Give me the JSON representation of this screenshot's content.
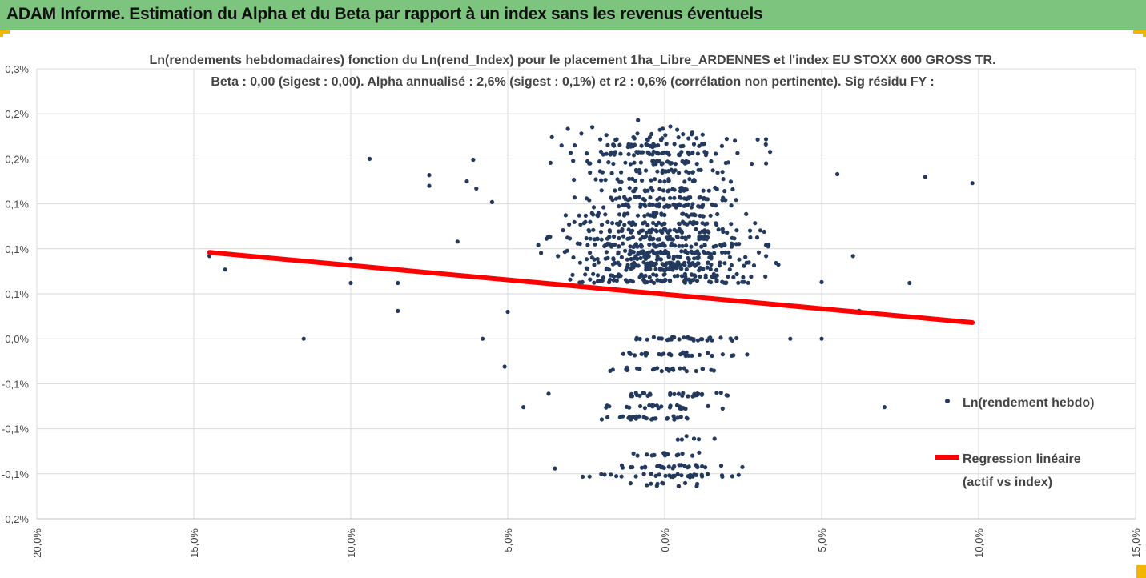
{
  "banner": {
    "title": "ADAM Informe. Estimation du Alpha et du Beta par rapport à un index sans les revenus éventuels"
  },
  "colors": {
    "banner_bg": "#7dc57f",
    "points": "#23395d",
    "regression": "#ff0000",
    "gridlines": "#d9d9d9"
  },
  "chart_data": {
    "type": "scatter",
    "title": "Ln(rendements hebdomadaires) fonction du Ln(rend_Index) pour le placement 1ha_Libre_ARDENNES et l'index EU STOXX 600 GROSS TR.",
    "subtitle": "Beta : 0,00 (sigest : 0,00). Alpha annualisé : 2,6% (sigest : 0,1%) et r2 : 0,6% (corrélation non pertinente). Sig résidu FY :",
    "xlim": [
      -0.2,
      0.15
    ],
    "ylim": [
      -0.002,
      0.003
    ],
    "x_ticks": [
      -0.2,
      -0.15,
      -0.1,
      -0.05,
      0.0,
      0.05,
      0.1,
      0.15
    ],
    "x_tick_labels": [
      "-20,0%",
      "-15,0%",
      "-10,0%",
      "-5,0%",
      "0,0%",
      "5,0%",
      "10,0%",
      "15,0%"
    ],
    "y_ticks": [
      0.003,
      0.0025,
      0.002,
      0.0015,
      0.001,
      0.0005,
      0.0,
      -0.0005,
      -0.001,
      -0.0015,
      -0.002
    ],
    "y_tick_labels": [
      "0,3%",
      "0,2%",
      "0,2%",
      "0,1%",
      "0,1%",
      "0,1%",
      "0,0%",
      "-0,1%",
      "-0,1%",
      "-0,1%",
      "-0,2%"
    ],
    "grid": true,
    "legend_position": "right",
    "series": [
      {
        "name": "Ln(rendement hebdo)",
        "kind": "scatter",
        "bands": [
          {
            "y": 0.00234,
            "x_from": -0.04,
            "x_to": 0.03,
            "count": 6
          },
          {
            "y": 0.00228,
            "x_from": -0.04,
            "x_to": 0.035,
            "count": 9
          },
          {
            "y": 0.00222,
            "x_from": -0.045,
            "x_to": 0.04,
            "count": 20
          },
          {
            "y": 0.00215,
            "x_from": -0.045,
            "x_to": 0.04,
            "count": 35
          },
          {
            "y": 0.00206,
            "x_from": -0.045,
            "x_to": 0.045,
            "count": 45
          },
          {
            "y": 0.00196,
            "x_from": -0.045,
            "x_to": 0.04,
            "count": 40
          },
          {
            "y": 0.00186,
            "x_from": -0.04,
            "x_to": 0.035,
            "count": 30
          },
          {
            "y": 0.00176,
            "x_from": -0.035,
            "x_to": 0.03,
            "count": 25
          },
          {
            "y": 0.00166,
            "x_from": -0.03,
            "x_to": 0.03,
            "count": 30
          },
          {
            "y": 0.00156,
            "x_from": -0.035,
            "x_to": 0.035,
            "count": 40
          },
          {
            "y": 0.00148,
            "x_from": -0.04,
            "x_to": 0.035,
            "count": 45
          },
          {
            "y": 0.00138,
            "x_from": -0.04,
            "x_to": 0.035,
            "count": 40
          },
          {
            "y": 0.00128,
            "x_from": -0.045,
            "x_to": 0.04,
            "count": 45
          },
          {
            "y": 0.0012,
            "x_from": -0.045,
            "x_to": 0.045,
            "count": 55
          },
          {
            "y": 0.00112,
            "x_from": -0.05,
            "x_to": 0.045,
            "count": 60
          },
          {
            "y": 0.00104,
            "x_from": -0.045,
            "x_to": 0.045,
            "count": 65
          },
          {
            "y": 0.00096,
            "x_from": -0.05,
            "x_to": 0.045,
            "count": 55
          },
          {
            "y": 0.0009,
            "x_from": -0.04,
            "x_to": 0.04,
            "count": 50
          },
          {
            "y": 0.00083,
            "x_from": -0.035,
            "x_to": 0.04,
            "count": 70
          },
          {
            "y": 0.00078,
            "x_from": -0.03,
            "x_to": 0.035,
            "count": 40
          },
          {
            "y": 0.0007,
            "x_from": -0.045,
            "x_to": 0.045,
            "count": 45
          },
          {
            "y": 0.00064,
            "x_from": -0.045,
            "x_to": 0.045,
            "count": 55
          },
          {
            "y": 0.0,
            "x_from": -0.02,
            "x_to": 0.03,
            "count": 35
          },
          {
            "y": -0.00017,
            "x_from": -0.03,
            "x_to": 0.035,
            "count": 30
          },
          {
            "y": -0.00034,
            "x_from": -0.025,
            "x_to": 0.025,
            "count": 25
          },
          {
            "y": -0.00062,
            "x_from": -0.025,
            "x_to": 0.03,
            "count": 30
          },
          {
            "y": -0.00076,
            "x_from": -0.025,
            "x_to": 0.025,
            "count": 28
          },
          {
            "y": -0.00088,
            "x_from": -0.03,
            "x_to": 0.025,
            "count": 30
          },
          {
            "y": -0.0011,
            "x_from": -0.005,
            "x_to": 0.02,
            "count": 6
          },
          {
            "y": -0.00128,
            "x_from": -0.02,
            "x_to": 0.02,
            "count": 15
          },
          {
            "y": -0.00142,
            "x_from": -0.025,
            "x_to": 0.03,
            "count": 28
          },
          {
            "y": -0.00152,
            "x_from": -0.035,
            "x_to": 0.03,
            "count": 35
          },
          {
            "y": -0.00162,
            "x_from": -0.02,
            "x_to": 0.02,
            "count": 12
          }
        ],
        "points": [
          {
            "x": -0.145,
            "y": 0.00092
          },
          {
            "x": -0.14,
            "y": 0.00077
          },
          {
            "x": -0.115,
            "y": 0.0
          },
          {
            "x": -0.1,
            "y": 0.00089
          },
          {
            "x": -0.1,
            "y": 0.00062
          },
          {
            "x": -0.094,
            "y": 0.002
          },
          {
            "x": -0.085,
            "y": 0.00062
          },
          {
            "x": -0.085,
            "y": 0.00031
          },
          {
            "x": -0.075,
            "y": 0.0017
          },
          {
            "x": -0.075,
            "y": 0.00182
          },
          {
            "x": -0.066,
            "y": 0.00108
          },
          {
            "x": -0.063,
            "y": 0.00175
          },
          {
            "x": -0.061,
            "y": 0.00199
          },
          {
            "x": -0.06,
            "y": 0.00167
          },
          {
            "x": -0.058,
            "y": 0.0
          },
          {
            "x": -0.055,
            "y": 0.00152
          },
          {
            "x": -0.051,
            "y": -0.00031
          },
          {
            "x": -0.05,
            "y": 0.0003
          },
          {
            "x": -0.045,
            "y": -0.00076
          },
          {
            "x": -0.037,
            "y": -0.00061
          },
          {
            "x": -0.035,
            "y": -0.00144
          },
          {
            "x": 0.05,
            "y": 0.00063
          },
          {
            "x": 0.055,
            "y": 0.00183
          },
          {
            "x": 0.06,
            "y": 0.00092
          },
          {
            "x": 0.062,
            "y": 0.00031
          },
          {
            "x": 0.07,
            "y": -0.00076
          },
          {
            "x": 0.078,
            "y": 0.00062
          },
          {
            "x": 0.083,
            "y": 0.0018
          },
          {
            "x": 0.098,
            "y": 0.00173
          },
          {
            "x": 0.05,
            "y": 0.0
          },
          {
            "x": 0.04,
            "y": 0.0
          },
          {
            "x": -0.0085,
            "y": 0.00243
          }
        ]
      },
      {
        "name": "Regression linéaire (actif vs index)",
        "kind": "line",
        "x": [
          -0.145,
          0.098
        ],
        "y": [
          0.00096,
          0.00018
        ]
      }
    ]
  },
  "legend": {
    "items": [
      {
        "label": "Ln(rendement hebdo)"
      },
      {
        "label_line1": "Regression linéaire",
        "label_line2": "(actif vs index)"
      }
    ]
  }
}
